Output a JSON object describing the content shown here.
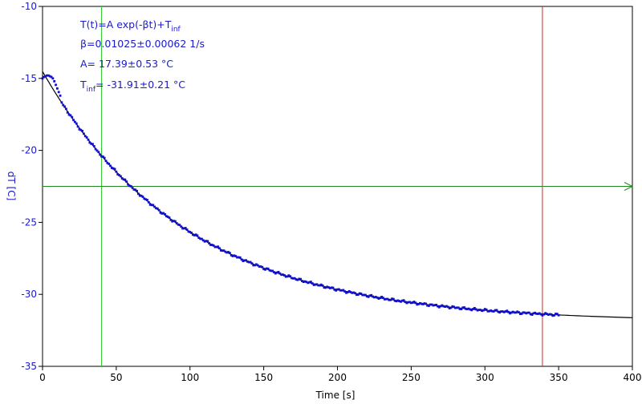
{
  "chart_data": {
    "type": "scatter",
    "xlabel": "Time [s]",
    "ylabel": "dT [C]",
    "xlim": [
      0,
      400
    ],
    "ylim": [
      -35,
      -10
    ],
    "x_ticks": [
      0,
      50,
      100,
      150,
      200,
      250,
      300,
      350,
      400
    ],
    "y_ticks": [
      -10,
      -15,
      -20,
      -25,
      -30,
      -35
    ],
    "grid": false,
    "annotation": {
      "formula_main": "T(t)=A exp(-βt)+T",
      "formula_sub": "inf",
      "beta": "β=0.01025±0.00062 1/s",
      "amplitude": "A= 17.39±0.53 °C",
      "tinf_main": "T",
      "tinf_sub": "inf",
      "tinf_value": "= -31.91±0.21 °C"
    },
    "fit": {
      "A": 17.39,
      "beta": 0.01025,
      "T_inf": -31.91,
      "x_range": [
        0,
        400
      ],
      "color": "#000000"
    },
    "data_points": {
      "x_start": 0,
      "x_end": 350,
      "color": "#1010c8",
      "early_points": [
        {
          "x": 0,
          "y": -15.0
        },
        {
          "x": 1,
          "y": -14.9
        },
        {
          "x": 2,
          "y": -14.85
        },
        {
          "x": 3,
          "y": -14.8
        },
        {
          "x": 4,
          "y": -14.8
        },
        {
          "x": 5,
          "y": -14.85
        },
        {
          "x": 6,
          "y": -14.9
        },
        {
          "x": 7,
          "y": -15.0
        },
        {
          "x": 8,
          "y": -15.2
        },
        {
          "x": 9,
          "y": -15.45
        },
        {
          "x": 10,
          "y": -15.7
        },
        {
          "x": 11,
          "y": -15.95
        },
        {
          "x": 12,
          "y": -16.2
        }
      ]
    },
    "vertical_lines": [
      {
        "x": 40,
        "color": "#33cc33"
      },
      {
        "x": 339,
        "color": "#dd2222"
      }
    ],
    "horizontal_line": {
      "y": -22.5,
      "color": "#228822"
    }
  }
}
